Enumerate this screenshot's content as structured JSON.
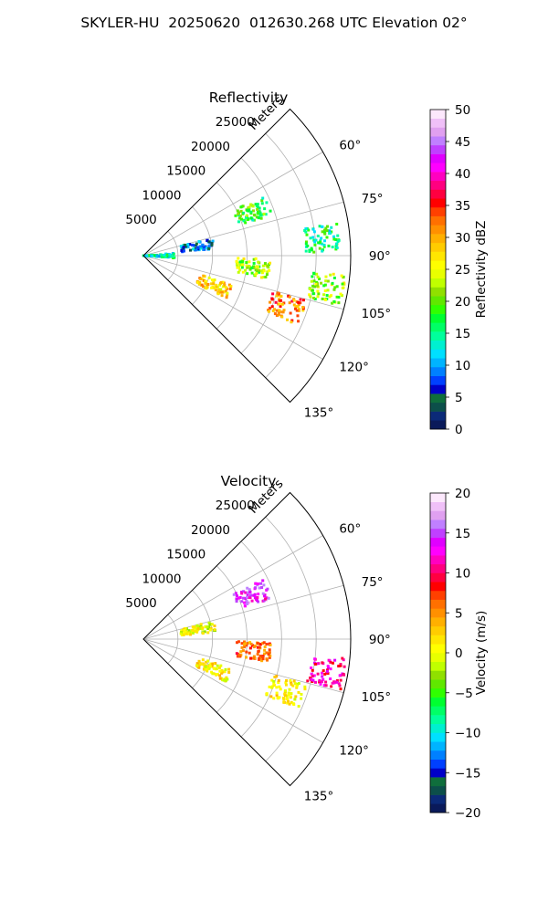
{
  "figure_title": "SKYLER-HU  20250620  012630.268 UTC Elevation 02°",
  "chart_data": [
    {
      "type": "heatmap",
      "projection": "polar-sector",
      "title": "Reflectivity",
      "range_axis_label": "Meters",
      "range_ticks": [
        "5000",
        "10000",
        "15000",
        "20000",
        "25000"
      ],
      "azimuth_ticks": [
        "60°",
        "75°",
        "90°",
        "105°",
        "120°",
        "135°"
      ],
      "azimuth_range_deg": [
        45,
        135
      ],
      "range_max_m": 30000,
      "colorbar": {
        "label": "Reflectivity dBZ",
        "min": 0,
        "max": 50,
        "ticks": [
          "0",
          "5",
          "10",
          "15",
          "20",
          "25",
          "30",
          "35",
          "40",
          "45",
          "50"
        ],
        "colors": [
          "#0a1a5a",
          "#0b2a78",
          "#0c4f4a",
          "#0f6e3c",
          "#0000c8",
          "#0040ff",
          "#0080ff",
          "#00b4ff",
          "#00e0ff",
          "#00f0d0",
          "#00ff9c",
          "#00ff66",
          "#00ff30",
          "#30ff00",
          "#60e800",
          "#90e000",
          "#c0ff00",
          "#e8ff00",
          "#ffff00",
          "#ffe600",
          "#ffcc00",
          "#ffb000",
          "#ff9000",
          "#ff7000",
          "#ff4000",
          "#ff0000",
          "#ff0040",
          "#ff0080",
          "#ff00c0",
          "#ff00ff",
          "#e000ff",
          "#c040ff",
          "#c080ff",
          "#e0a0f0",
          "#f0c0f8",
          "#fce8fc"
        ]
      },
      "echo_regions": [
        {
          "az": 68,
          "r": 17000,
          "dbz": 18
        },
        {
          "az": 80,
          "r": 8000,
          "dbz": 8
        },
        {
          "az": 90,
          "r": 2000,
          "dbz": 14
        },
        {
          "az": 85,
          "r": 26000,
          "dbz": 16
        },
        {
          "az": 96,
          "r": 16000,
          "dbz": 22
        },
        {
          "az": 100,
          "r": 27000,
          "dbz": 22
        },
        {
          "az": 113,
          "r": 11000,
          "dbz": 28
        },
        {
          "az": 110,
          "r": 22000,
          "dbz": 32
        }
      ]
    },
    {
      "type": "heatmap",
      "projection": "polar-sector",
      "title": "Velocity",
      "range_axis_label": "Meters",
      "range_ticks": [
        "5000",
        "10000",
        "15000",
        "20000",
        "25000"
      ],
      "azimuth_ticks": [
        "60°",
        "75°",
        "90°",
        "105°",
        "120°",
        "135°"
      ],
      "azimuth_range_deg": [
        45,
        135
      ],
      "range_max_m": 30000,
      "colorbar": {
        "label": "Velocity (m/s)",
        "min": -20,
        "max": 20,
        "ticks": [
          "−20",
          "−15",
          "−10",
          "−5",
          "0",
          "5",
          "10",
          "15",
          "20"
        ],
        "colors": [
          "#0a1a5a",
          "#0b2a78",
          "#0c4f4a",
          "#0f6e3c",
          "#0000c8",
          "#0040ff",
          "#0080ff",
          "#00b4ff",
          "#00e0ff",
          "#00f0d0",
          "#00ff9c",
          "#00ff66",
          "#00ff30",
          "#30ff00",
          "#60e800",
          "#90e000",
          "#c0ff00",
          "#e8ff00",
          "#ffff00",
          "#ffe600",
          "#ffcc00",
          "#ffb000",
          "#ff9000",
          "#ff7000",
          "#ff4000",
          "#ff0000",
          "#ff0040",
          "#ff0080",
          "#ff00c0",
          "#ff00ff",
          "#e000ff",
          "#c040ff",
          "#c080ff",
          "#e0a0f0",
          "#f0c0f8",
          "#fce8fc"
        ]
      },
      "echo_regions": [
        {
          "az": 68,
          "r": 17000,
          "vel": 14
        },
        {
          "az": 80,
          "r": 8000,
          "vel": 0
        },
        {
          "az": 96,
          "r": 16000,
          "vel": 6
        },
        {
          "az": 100,
          "r": 27000,
          "vel": 11
        },
        {
          "az": 113,
          "r": 11000,
          "vel": 1
        },
        {
          "az": 110,
          "r": 22000,
          "vel": 1
        }
      ]
    }
  ]
}
